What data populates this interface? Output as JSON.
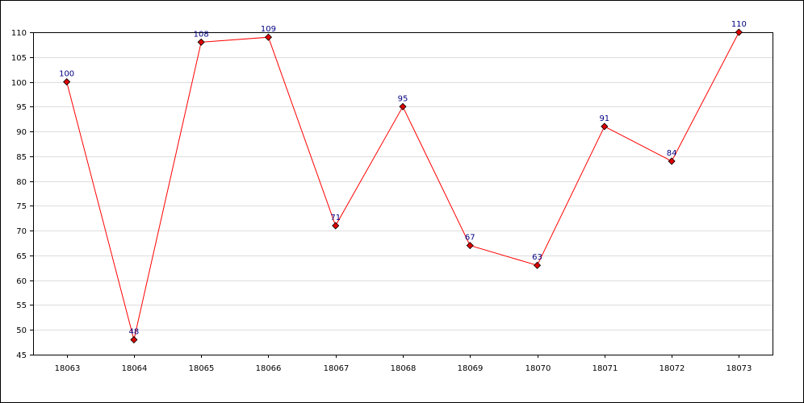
{
  "chart_data": {
    "type": "line",
    "title": "",
    "xlabel": "",
    "ylabel": "",
    "categories": [
      "18063",
      "18064",
      "18065",
      "18066",
      "18067",
      "18068",
      "18069",
      "18070",
      "18071",
      "18072",
      "18073"
    ],
    "series": [
      {
        "values": [
          100,
          48,
          108,
          109,
          71,
          95,
          67,
          63,
          91,
          84,
          110
        ],
        "labels": [
          "100",
          "48",
          "108",
          "109",
          "71",
          "95",
          "67",
          "63",
          "91",
          "84",
          "110"
        ],
        "color": "#ff0000",
        "marker": "diamond",
        "marker_color": "#dd0000"
      }
    ],
    "ylim": [
      45,
      110
    ],
    "y_ticks": [
      "45",
      "50",
      "55",
      "60",
      "65",
      "70",
      "75",
      "80",
      "85",
      "90",
      "95",
      "100",
      "105",
      "110"
    ],
    "grid": true,
    "grid_color": "#dddddd",
    "label_color": "#000080",
    "legend": "none"
  }
}
